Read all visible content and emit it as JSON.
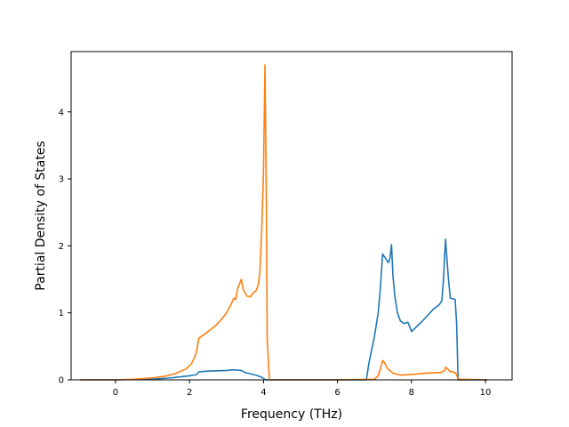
{
  "chart_data": {
    "type": "line",
    "xlabel": "Frequency (THz)",
    "ylabel": "Partial Density of States",
    "xlim": [
      -1.2,
      10.72
    ],
    "ylim": [
      0,
      4.9
    ],
    "x_ticks": [
      0,
      2,
      4,
      6,
      8,
      10
    ],
    "y_ticks": [
      0,
      1,
      2,
      3,
      4
    ],
    "grid": false,
    "colors": {
      "series_1": "#1f77b4",
      "series_2": "#ff7f0e",
      "axes": "#000000"
    },
    "series": [
      {
        "color": "#1f77b4",
        "points": [
          [
            -0.95,
            0
          ],
          [
            0,
            0
          ],
          [
            1.0,
            0.01
          ],
          [
            1.5,
            0.03
          ],
          [
            2.0,
            0.06
          ],
          [
            2.2,
            0.08
          ],
          [
            2.25,
            0.12
          ],
          [
            2.5,
            0.13
          ],
          [
            3.0,
            0.14
          ],
          [
            3.2,
            0.15
          ],
          [
            3.4,
            0.14
          ],
          [
            3.5,
            0.11
          ],
          [
            3.8,
            0.07
          ],
          [
            3.95,
            0.04
          ],
          [
            4.03,
            0.01
          ],
          [
            4.06,
            0
          ],
          [
            6.0,
            0
          ],
          [
            6.78,
            0
          ],
          [
            6.85,
            0.25
          ],
          [
            7.0,
            0.65
          ],
          [
            7.1,
            1.0
          ],
          [
            7.15,
            1.3
          ],
          [
            7.22,
            1.88
          ],
          [
            7.35,
            1.77
          ],
          [
            7.38,
            1.75
          ],
          [
            7.42,
            1.82
          ],
          [
            7.46,
            2.02
          ],
          [
            7.5,
            1.55
          ],
          [
            7.55,
            1.25
          ],
          [
            7.62,
            1.0
          ],
          [
            7.7,
            0.88
          ],
          [
            7.8,
            0.84
          ],
          [
            7.9,
            0.86
          ],
          [
            7.95,
            0.8
          ],
          [
            8.0,
            0.72
          ],
          [
            8.15,
            0.8
          ],
          [
            8.3,
            0.88
          ],
          [
            8.45,
            0.97
          ],
          [
            8.6,
            1.06
          ],
          [
            8.75,
            1.12
          ],
          [
            8.82,
            1.18
          ],
          [
            8.86,
            1.45
          ],
          [
            8.92,
            2.1
          ],
          [
            9.0,
            1.5
          ],
          [
            9.05,
            1.22
          ],
          [
            9.12,
            1.21
          ],
          [
            9.18,
            1.2
          ],
          [
            9.22,
            0.85
          ],
          [
            9.26,
            0
          ],
          [
            10.05,
            0
          ]
        ]
      },
      {
        "color": "#ff7f0e",
        "points": [
          [
            -0.95,
            0
          ],
          [
            0,
            0
          ],
          [
            0.5,
            0.01
          ],
          [
            1.0,
            0.03
          ],
          [
            1.3,
            0.05
          ],
          [
            1.6,
            0.09
          ],
          [
            1.9,
            0.16
          ],
          [
            2.05,
            0.24
          ],
          [
            2.15,
            0.35
          ],
          [
            2.2,
            0.45
          ],
          [
            2.25,
            0.62
          ],
          [
            2.4,
            0.68
          ],
          [
            2.6,
            0.76
          ],
          [
            2.8,
            0.86
          ],
          [
            3.0,
            1.0
          ],
          [
            3.1,
            1.1
          ],
          [
            3.2,
            1.22
          ],
          [
            3.25,
            1.2
          ],
          [
            3.3,
            1.36
          ],
          [
            3.4,
            1.5
          ],
          [
            3.45,
            1.35
          ],
          [
            3.55,
            1.25
          ],
          [
            3.65,
            1.24
          ],
          [
            3.72,
            1.3
          ],
          [
            3.8,
            1.33
          ],
          [
            3.86,
            1.42
          ],
          [
            3.9,
            1.6
          ],
          [
            3.95,
            2.2
          ],
          [
            4.0,
            3.1
          ],
          [
            4.04,
            4.7
          ],
          [
            4.08,
            2.5
          ],
          [
            4.1,
            0.6
          ],
          [
            4.16,
            0
          ],
          [
            6.0,
            0
          ],
          [
            7.0,
            0.01
          ],
          [
            7.1,
            0.06
          ],
          [
            7.18,
            0.2
          ],
          [
            7.22,
            0.29
          ],
          [
            7.28,
            0.25
          ],
          [
            7.35,
            0.17
          ],
          [
            7.5,
            0.1
          ],
          [
            7.7,
            0.07
          ],
          [
            8.0,
            0.08
          ],
          [
            8.4,
            0.1
          ],
          [
            8.8,
            0.11
          ],
          [
            8.9,
            0.14
          ],
          [
            8.92,
            0.19
          ],
          [
            9.0,
            0.15
          ],
          [
            9.05,
            0.12
          ],
          [
            9.12,
            0.12
          ],
          [
            9.2,
            0.1
          ],
          [
            9.25,
            0.03
          ],
          [
            9.3,
            0.01
          ],
          [
            10.05,
            0
          ]
        ]
      }
    ]
  }
}
